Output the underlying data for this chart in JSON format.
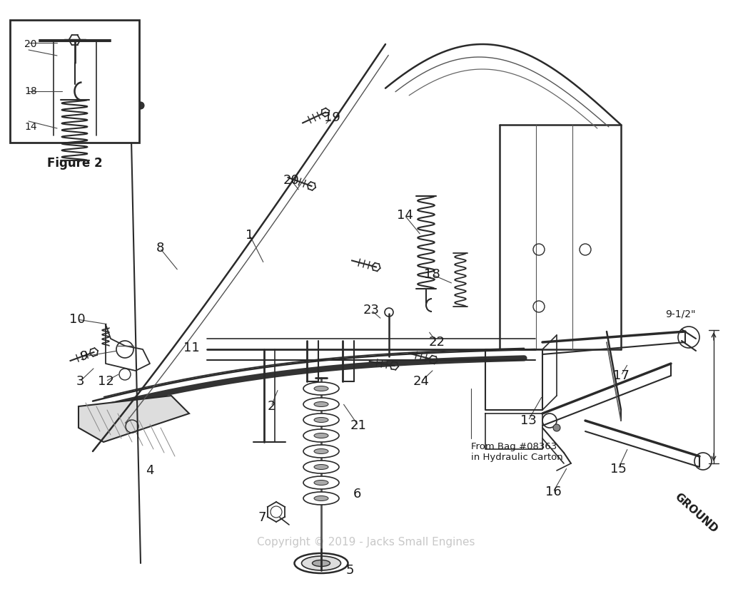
{
  "bg_color": "#ffffff",
  "line_color": "#2a2a2a",
  "label_color": "#1a1a1a",
  "watermark_color": "#c8c8c8",
  "watermark_text": "Copyright © 2019 - Jacks Small Engines",
  "figure2_label": "Figure 2",
  "ground_text": "GROUND",
  "measurement_text": "9-1/2\"",
  "annotation_text": "From Bag #08363\nin Hydraulic Carton",
  "font_size_parts": 13,
  "font_size_annotation": 9.5,
  "font_size_fig2_parts": 10,
  "font_size_watermark": 11,
  "font_size_ground": 11,
  "font_size_measurement": 10,
  "font_size_figure2": 12
}
